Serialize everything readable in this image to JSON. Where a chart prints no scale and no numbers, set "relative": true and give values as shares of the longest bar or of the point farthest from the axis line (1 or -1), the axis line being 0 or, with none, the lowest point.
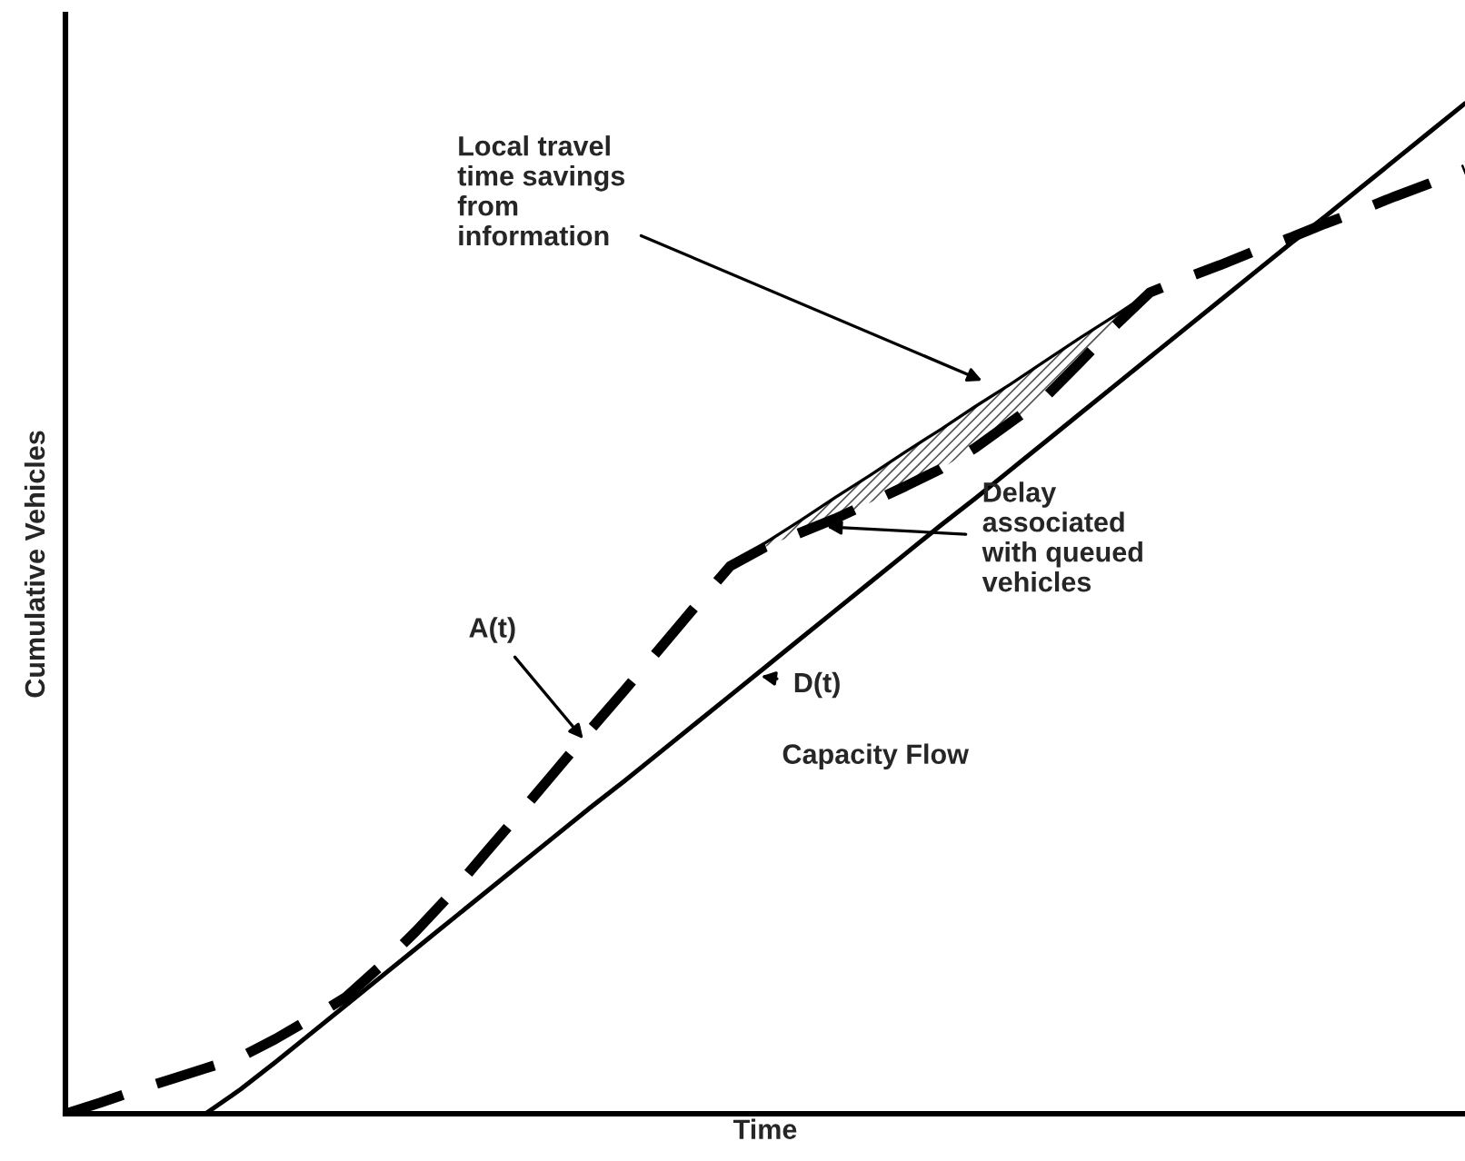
{
  "chart_data": {
    "type": "line",
    "relative": true,
    "xlabel": "Time",
    "ylabel": "Cumulative Vehicles",
    "tick_labels": false,
    "categories": [
      null,
      null,
      null,
      null,
      null,
      null,
      null,
      null,
      null,
      null,
      null,
      null,
      null,
      null,
      null,
      null,
      null,
      null,
      null,
      null,
      null,
      null,
      null,
      null,
      null,
      null,
      null,
      null,
      null,
      null,
      null,
      null,
      null,
      null,
      null,
      null,
      null,
      null,
      null,
      null,
      null
    ],
    "series": [
      {
        "color": "#000000",
        "line_style": "dashed",
        "values": [
          0,
          0.011,
          0.023,
          0.034,
          0.045,
          0.056,
          0.074,
          0.094,
          0.115,
          0.146,
          0.18,
          0.217,
          0.258,
          0.298,
          0.339,
          0.38,
          0.42,
          0.461,
          0.502,
          0.542,
          0.561,
          0.575,
          0.589,
          0.605,
          0.621,
          0.638,
          0.659,
          0.684,
          0.709,
          0.744,
          0.78,
          0.813,
          0.827,
          0.84,
          0.854,
          0.867,
          0.881,
          0.894,
          0.908,
          0.921,
          0.935
        ]
      },
      {
        "color": "#000000",
        "line_style": "solid",
        "values": [
          null,
          null,
          null,
          null,
          0,
          0.024,
          0.051,
          0.079,
          0.107,
          0.135,
          0.163,
          0.191,
          0.219,
          0.247,
          0.275,
          0.303,
          0.33,
          0.358,
          0.386,
          0.414,
          0.442,
          0.47,
          0.498,
          0.526,
          0.554,
          0.582,
          0.609,
          0.637,
          0.665,
          0.693,
          0.721,
          0.749,
          0.777,
          0.805,
          0.833,
          0.861,
          0.888,
          0.916,
          0.944,
          0.972,
          1.0
        ]
      },
      {
        "color": "#000000",
        "line_style": "solid",
        "values": [
          null,
          null,
          null,
          null,
          null,
          null,
          null,
          null,
          null,
          null,
          null,
          null,
          null,
          null,
          null,
          null,
          null,
          null,
          null,
          0.542,
          0.565,
          0.587,
          0.61,
          0.632,
          0.655,
          0.677,
          0.7,
          0.722,
          0.745,
          0.768,
          0.79,
          0.813,
          null,
          null,
          null,
          null,
          null,
          null,
          null,
          null,
          null
        ],
        "lower": [
          null,
          null,
          null,
          null,
          null,
          null,
          null,
          null,
          null,
          null,
          null,
          null,
          null,
          null,
          null,
          null,
          null,
          null,
          null,
          0.542,
          0.561,
          0.575,
          0.589,
          0.605,
          0.621,
          0.638,
          0.659,
          0.684,
          0.709,
          0.744,
          0.78,
          0.813,
          null,
          null,
          null,
          null,
          null,
          null,
          null,
          null,
          null
        ],
        "upper": [
          null,
          null,
          null,
          null,
          null,
          null,
          null,
          null,
          null,
          null,
          null,
          null,
          null,
          null,
          null,
          null,
          null,
          null,
          null,
          0.542,
          0.565,
          0.587,
          0.61,
          0.632,
          0.655,
          0.677,
          0.7,
          0.722,
          0.745,
          0.768,
          0.79,
          0.813,
          null,
          null,
          null,
          null,
          null,
          null,
          null,
          null,
          null
        ]
      }
    ],
    "annotations": [
      "Local travel\ntime savings\nfrom\ninformation",
      "A(t)",
      "D(t)",
      "Delay\nassociated\nwith queued\nvehicles",
      "Capacity Flow"
    ]
  }
}
